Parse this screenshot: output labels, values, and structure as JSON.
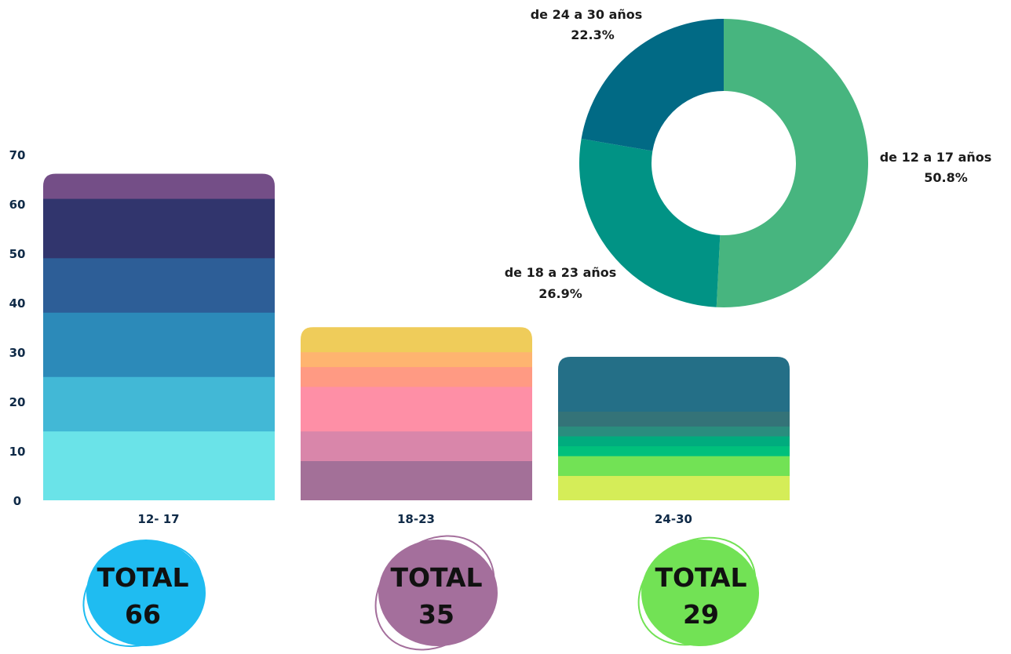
{
  "chart_data": [
    {
      "type": "bar",
      "stacked": true,
      "categories": [
        "12- 17",
        "18-23",
        "24-30"
      ],
      "y_ticks": [
        "0",
        "10",
        "20",
        "30",
        "40",
        "50",
        "60",
        "70"
      ],
      "ylim": [
        0,
        70
      ],
      "grid": false,
      "stacks": [
        {
          "category": "12- 17",
          "segments": [
            {
              "value": 14,
              "color": "#6ae3e8"
            },
            {
              "value": 11,
              "color": "#42b8d6"
            },
            {
              "value": 13,
              "color": "#2c8ab9"
            },
            {
              "value": 11,
              "color": "#2d5e97"
            },
            {
              "value": 12,
              "color": "#31356d"
            },
            {
              "value": 5,
              "color": "#744e87"
            }
          ]
        },
        {
          "category": "18-23",
          "segments": [
            {
              "value": 8,
              "color": "#a37098"
            },
            {
              "value": 6,
              "color": "#d986aa"
            },
            {
              "value": 9,
              "color": "#fe8fa6"
            },
            {
              "value": 4,
              "color": "#ff9a83"
            },
            {
              "value": 3,
              "color": "#feb470"
            },
            {
              "value": 5,
              "color": "#efcc5a"
            }
          ]
        },
        {
          "category": "24-30",
          "segments": [
            {
              "value": 5,
              "color": "#d5ed58"
            },
            {
              "value": 4,
              "color": "#72e255"
            },
            {
              "value": 2,
              "color": "#00c07c"
            },
            {
              "value": 2,
              "color": "#00ac7e"
            },
            {
              "value": 2,
              "color": "#2a8d7e"
            },
            {
              "value": 3,
              "color": "#347378"
            },
            {
              "value": 11,
              "color": "#246f87"
            }
          ]
        }
      ]
    },
    {
      "type": "pie",
      "donut": true,
      "slices": [
        {
          "label": "de 12 a 17 años",
          "pct_label": "50.8%",
          "value": 50.8,
          "color": "#47b57f"
        },
        {
          "label": "de 18 a 23 años",
          "pct_label": "26.9%",
          "value": 26.9,
          "color": "#019385"
        },
        {
          "label": "de 24 a 30 años",
          "pct_label": "22.3%",
          "value": 22.3,
          "color": "#016a85"
        }
      ]
    }
  ],
  "totals": [
    {
      "label": "TOTAL",
      "value": "66",
      "fill": "#1fbcf1",
      "stroke": "#1fbcf1"
    },
    {
      "label": "TOTAL",
      "value": "35",
      "fill": "#a46f9c",
      "stroke": "#a46f9c"
    },
    {
      "label": "TOTAL",
      "value": "29",
      "fill": "#72e255",
      "stroke": "#72e255"
    }
  ]
}
